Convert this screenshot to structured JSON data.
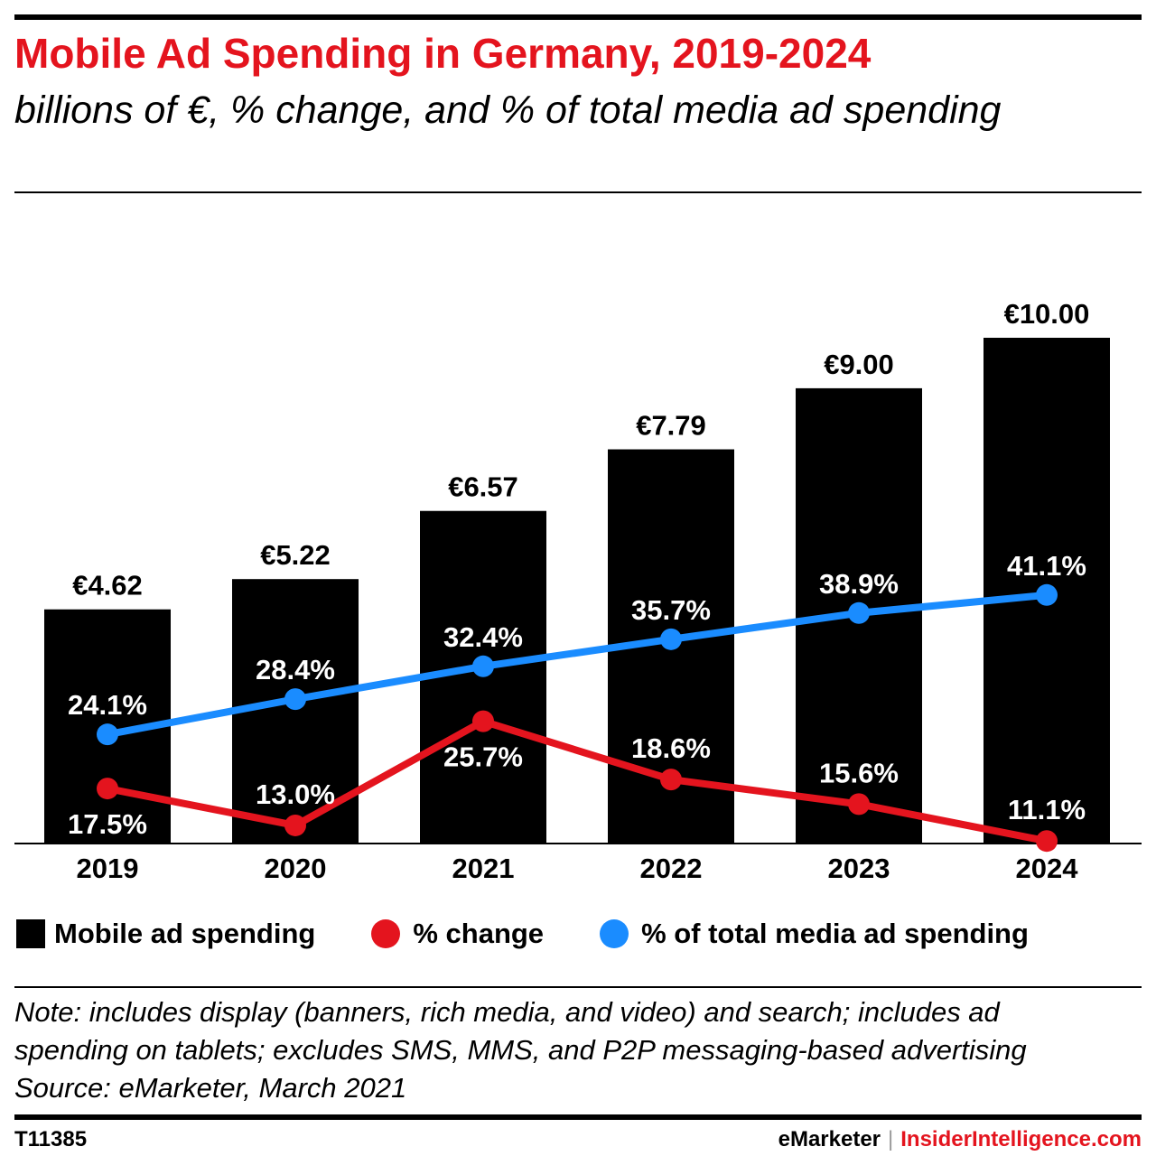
{
  "title": "Mobile Ad Spending in Germany, 2019-2024",
  "subtitle": "billions of €, % change, and % of total media ad spending",
  "chart_data": {
    "type": "bar",
    "categories": [
      "2019",
      "2020",
      "2021",
      "2022",
      "2023",
      "2024"
    ],
    "series": [
      {
        "name": "Mobile ad spending",
        "type": "bar",
        "values": [
          4.62,
          5.22,
          6.57,
          7.79,
          9.0,
          10.0
        ],
        "labels": [
          "€4.62",
          "€5.22",
          "€6.57",
          "€7.79",
          "€9.00",
          "€10.00"
        ],
        "color": "#000000"
      },
      {
        "name": "% change",
        "type": "line",
        "values": [
          17.5,
          13.0,
          25.7,
          18.6,
          15.6,
          11.1
        ],
        "labels": [
          "17.5%",
          "13.0%",
          "25.7%",
          "18.6%",
          "15.6%",
          "11.1%"
        ],
        "color": "#e4141e"
      },
      {
        "name": "% of total media ad spending",
        "type": "line",
        "values": [
          24.1,
          28.4,
          32.4,
          35.7,
          38.9,
          41.1
        ],
        "labels": [
          "24.1%",
          "28.4%",
          "32.4%",
          "35.7%",
          "38.9%",
          "41.1%"
        ],
        "color": "#1a8cff"
      }
    ],
    "grid": false,
    "legend_position": "bottom"
  },
  "legend": {
    "bar_label": "Mobile ad spending",
    "change_label": "% change",
    "share_label": "% of total media ad spending"
  },
  "note": {
    "line1": "Note: includes display (banners, rich media, and video) and search; includes ad",
    "line2": "spending on tablets; excludes SMS, MMS, and P2P messaging-based advertising",
    "source": "Source: eMarketer, March 2021"
  },
  "footer": {
    "id": "T11385",
    "brand": "eMarketer",
    "separator": "|",
    "site": "InsiderIntelligence.com"
  }
}
